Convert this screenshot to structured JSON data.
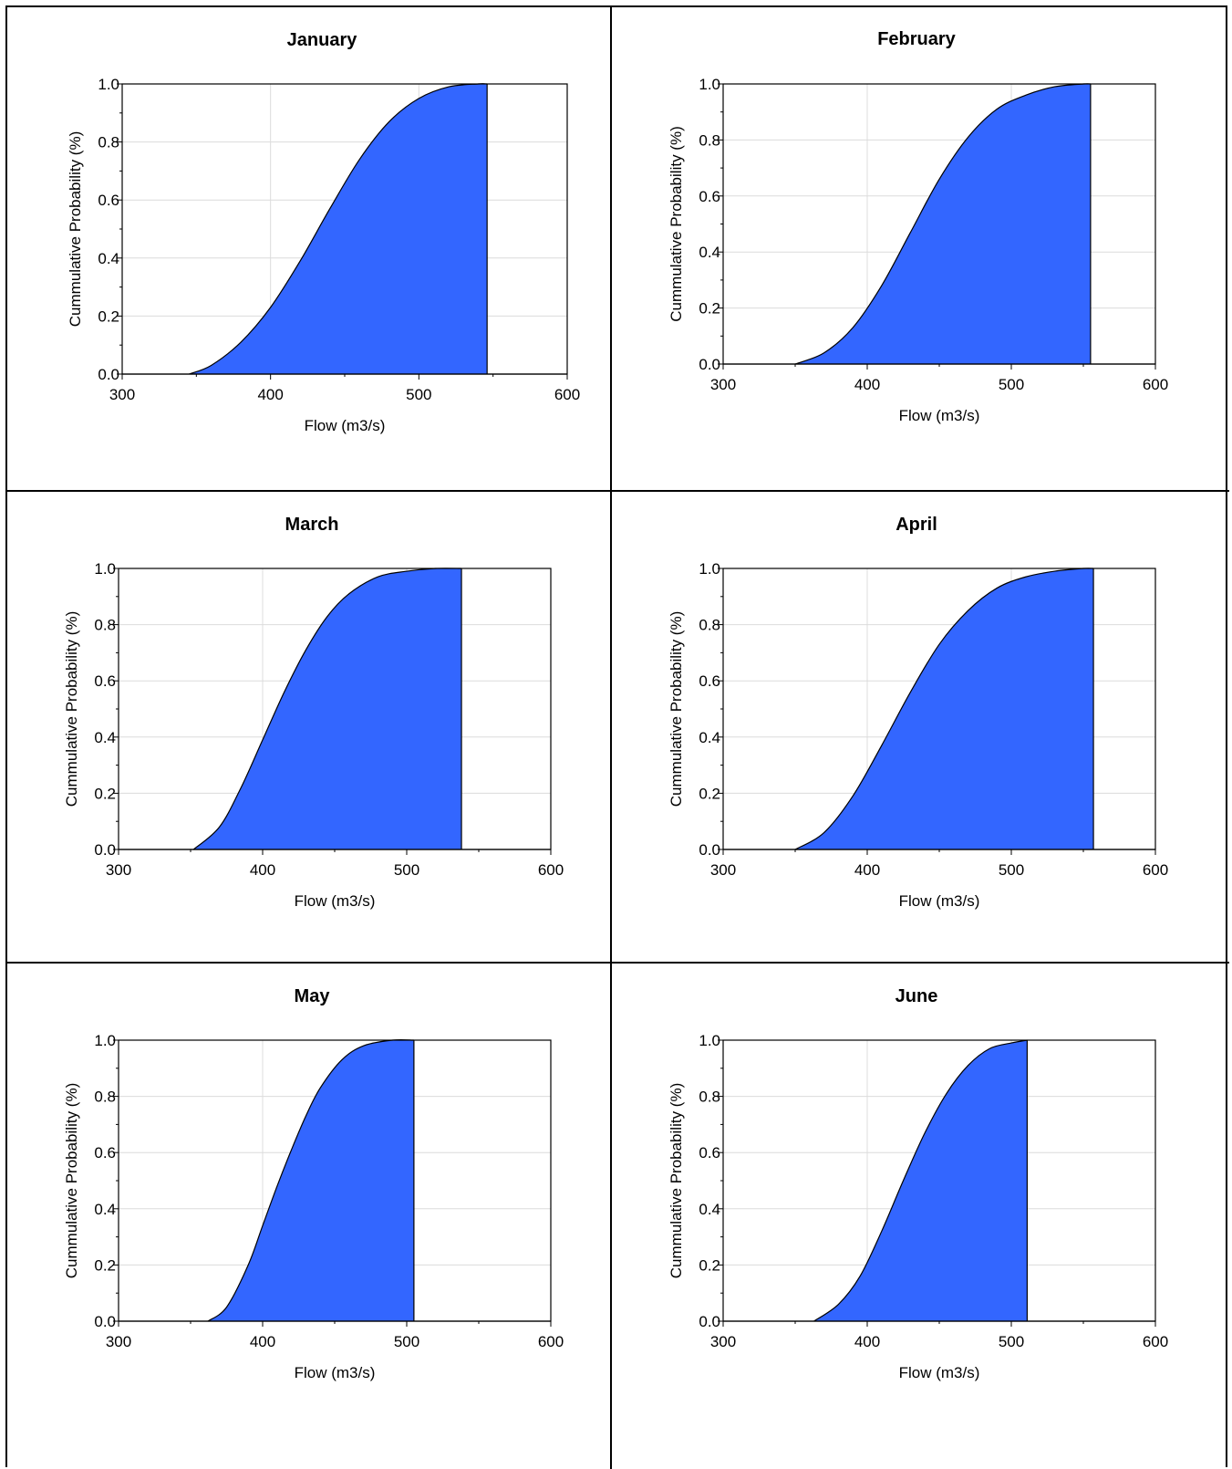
{
  "chart_data": [
    {
      "type": "area",
      "title": "January",
      "xlabel": "Flow (m3/s)",
      "ylabel": "Cummulative Probability (%)",
      "xlim": [
        300,
        600
      ],
      "ylim": [
        0.0,
        1.0
      ],
      "xticks": [
        "300",
        "400",
        "500",
        "600"
      ],
      "yticks": [
        "0.0",
        "0.2",
        "0.4",
        "0.6",
        "0.8",
        "1.0"
      ],
      "grid": true,
      "fill_color": "#3366ff",
      "series": [
        {
          "x": [
            345,
            360,
            380,
            400,
            420,
            440,
            460,
            480,
            500,
            520,
            540,
            546
          ],
          "y": [
            0.0,
            0.03,
            0.11,
            0.23,
            0.39,
            0.57,
            0.74,
            0.87,
            0.95,
            0.99,
            1.0,
            1.0
          ]
        }
      ]
    },
    {
      "type": "area",
      "title": "February",
      "xlabel": "Flow (m3/s)",
      "ylabel": "Cummulative Probability (%)",
      "xlim": [
        300,
        600
      ],
      "ylim": [
        0.0,
        1.0
      ],
      "xticks": [
        "300",
        "400",
        "500",
        "600"
      ],
      "yticks": [
        "0.0",
        "0.2",
        "0.4",
        "0.6",
        "0.8",
        "1.0"
      ],
      "grid": true,
      "fill_color": "#3366ff",
      "series": [
        {
          "x": [
            350,
            370,
            390,
            410,
            430,
            450,
            470,
            490,
            510,
            530,
            550,
            555
          ],
          "y": [
            0.0,
            0.04,
            0.13,
            0.28,
            0.47,
            0.66,
            0.81,
            0.91,
            0.96,
            0.99,
            1.0,
            1.0
          ]
        }
      ]
    },
    {
      "type": "area",
      "title": "March",
      "xlabel": "Flow (m3/s)",
      "ylabel": "Cummulative Probability (%)",
      "xlim": [
        300,
        600
      ],
      "ylim": [
        0.0,
        1.0
      ],
      "xticks": [
        "300",
        "400",
        "500",
        "600"
      ],
      "yticks": [
        "0.0",
        "0.2",
        "0.4",
        "0.6",
        "0.8",
        "1.0"
      ],
      "grid": true,
      "fill_color": "#3366ff",
      "series": [
        {
          "x": [
            352,
            370,
            385,
            400,
            415,
            430,
            445,
            460,
            480,
            500,
            520,
            538
          ],
          "y": [
            0.0,
            0.08,
            0.22,
            0.39,
            0.56,
            0.71,
            0.83,
            0.91,
            0.97,
            0.99,
            1.0,
            1.0
          ]
        }
      ]
    },
    {
      "type": "area",
      "title": "April",
      "xlabel": "Flow (m3/s)",
      "ylabel": "Cummulative Probability (%)",
      "xlim": [
        300,
        600
      ],
      "ylim": [
        0.0,
        1.0
      ],
      "xticks": [
        "300",
        "400",
        "500",
        "600"
      ],
      "yticks": [
        "0.0",
        "0.2",
        "0.4",
        "0.6",
        "0.8",
        "1.0"
      ],
      "grid": true,
      "fill_color": "#3366ff",
      "series": [
        {
          "x": [
            350,
            370,
            390,
            410,
            430,
            450,
            470,
            490,
            510,
            530,
            550,
            557
          ],
          "y": [
            0.0,
            0.06,
            0.19,
            0.37,
            0.56,
            0.73,
            0.85,
            0.93,
            0.97,
            0.99,
            1.0,
            1.0
          ]
        }
      ]
    },
    {
      "type": "area",
      "title": "May",
      "xlabel": "Flow (m3/s)",
      "ylabel": "Cummulative Probability (%)",
      "xlim": [
        300,
        600
      ],
      "ylim": [
        0.0,
        1.0
      ],
      "xticks": [
        "300",
        "400",
        "500",
        "600"
      ],
      "yticks": [
        "0.0",
        "0.2",
        "0.4",
        "0.6",
        "0.8",
        "1.0"
      ],
      "grid": true,
      "fill_color": "#3366ff",
      "series": [
        {
          "x": [
            362,
            375,
            390,
            400,
            410,
            420,
            430,
            440,
            455,
            470,
            490,
            505
          ],
          "y": [
            0.0,
            0.05,
            0.2,
            0.34,
            0.48,
            0.61,
            0.73,
            0.83,
            0.93,
            0.98,
            1.0,
            1.0
          ]
        }
      ]
    },
    {
      "type": "area",
      "title": "June",
      "xlabel": "Flow (m3/s)",
      "ylabel": "Cummulative Probability (%)",
      "xlim": [
        300,
        600
      ],
      "ylim": [
        0.0,
        1.0
      ],
      "xticks": [
        "300",
        "400",
        "500",
        "600"
      ],
      "yticks": [
        "0.0",
        "0.2",
        "0.4",
        "0.6",
        "0.8",
        "1.0"
      ],
      "grid": true,
      "fill_color": "#3366ff",
      "series": [
        {
          "x": [
            363,
            380,
            395,
            410,
            425,
            440,
            455,
            470,
            485,
            500,
            511
          ],
          "y": [
            0.0,
            0.06,
            0.16,
            0.32,
            0.5,
            0.67,
            0.81,
            0.91,
            0.97,
            0.99,
            1.0
          ]
        }
      ]
    }
  ]
}
